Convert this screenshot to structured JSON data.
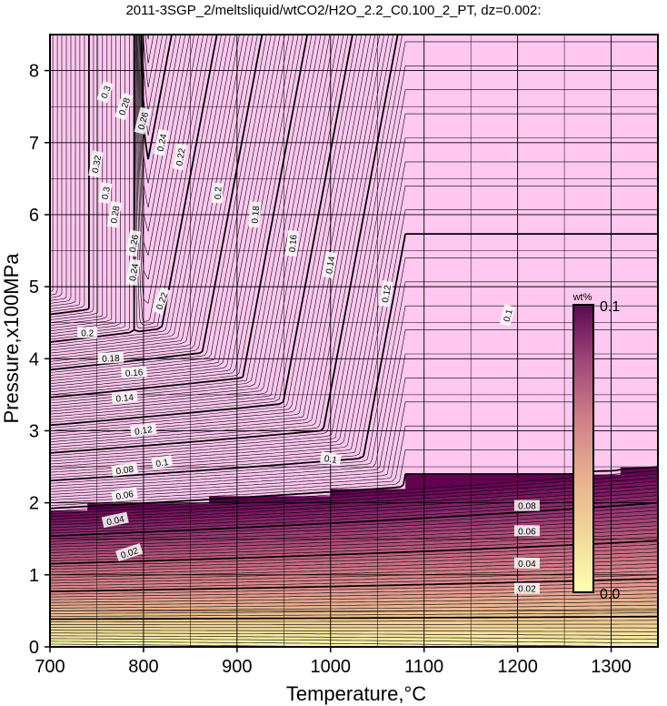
{
  "chart_data": {
    "type": "heatmap",
    "title": "2011-3SGP_2/meltsliquid/wtCO2/H2O_2.2_C0.100_2_PT, dz=0.002:",
    "xlabel": "Temperature,°C",
    "ylabel": "Pressure,x100MPa",
    "xlim": [
      700,
      1350
    ],
    "ylim": [
      0,
      8.5
    ],
    "x_ticks": [
      700,
      800,
      900,
      1000,
      1100,
      1200,
      1300
    ],
    "y_ticks": [
      0,
      1,
      2,
      3,
      4,
      5,
      6,
      7,
      8
    ],
    "grid": true,
    "contour_interval": 0.002,
    "colorbar": {
      "unit": "wt%",
      "min": 0.0,
      "max": 0.1,
      "min_label": "0.0",
      "max_label": "0.1",
      "colors": [
        "#ffffb0",
        "#f0c890",
        "#e09090",
        "#c06080",
        "#903070",
        "#600050"
      ],
      "saturated_color": "#ffc8f0"
    },
    "contour_labels": [
      {
        "text": "0.02",
        "T": 785,
        "P": 1.3,
        "angle": 18
      },
      {
        "text": "0.04",
        "T": 770,
        "P": 1.75,
        "angle": 12
      },
      {
        "text": "0.06",
        "T": 780,
        "P": 2.1,
        "angle": 10
      },
      {
        "text": "0.08",
        "T": 780,
        "P": 2.45,
        "angle": 8
      },
      {
        "text": "0.1",
        "T": 820,
        "P": 2.55,
        "angle": 10
      },
      {
        "text": "0.12",
        "T": 800,
        "P": 3.0,
        "angle": 8
      },
      {
        "text": "0.14",
        "T": 780,
        "P": 3.45,
        "angle": 6
      },
      {
        "text": "0.16",
        "T": 790,
        "P": 3.8,
        "angle": 4
      },
      {
        "text": "0.18",
        "T": 765,
        "P": 4.0,
        "angle": 3
      },
      {
        "text": "0.2",
        "T": 740,
        "P": 4.35,
        "angle": 0
      },
      {
        "text": "0.22",
        "T": 820,
        "P": 4.8,
        "angle": 70
      },
      {
        "text": "0.24",
        "T": 790,
        "P": 5.2,
        "angle": 80
      },
      {
        "text": "0.26",
        "T": 790,
        "P": 5.6,
        "angle": 80
      },
      {
        "text": "0.28",
        "T": 770,
        "P": 6.0,
        "angle": 80
      },
      {
        "text": "0.3",
        "T": 760,
        "P": 6.3,
        "angle": 80
      },
      {
        "text": "0.32",
        "T": 750,
        "P": 6.7,
        "angle": 80
      },
      {
        "text": "0.02",
        "T": 1210,
        "P": 0.8,
        "angle": 0
      },
      {
        "text": "0.04",
        "T": 1210,
        "P": 1.15,
        "angle": 0
      },
      {
        "text": "0.06",
        "T": 1210,
        "P": 1.6,
        "angle": 0
      },
      {
        "text": "0.08",
        "T": 1210,
        "P": 1.95,
        "angle": 0
      },
      {
        "text": "0.1",
        "T": 1000,
        "P": 2.6,
        "angle": -10
      },
      {
        "text": "0.12",
        "T": 1060,
        "P": 4.9,
        "angle": 80
      },
      {
        "text": "0.14",
        "T": 1000,
        "P": 5.3,
        "angle": 80
      },
      {
        "text": "0.16",
        "T": 960,
        "P": 5.6,
        "angle": 85
      },
      {
        "text": "0.18",
        "T": 920,
        "P": 6.0,
        "angle": 85
      },
      {
        "text": "0.2",
        "T": 880,
        "P": 6.3,
        "angle": 88
      },
      {
        "text": "0.22",
        "T": 840,
        "P": 6.8,
        "angle": 80
      },
      {
        "text": "0.24",
        "T": 820,
        "P": 7.0,
        "angle": 78
      },
      {
        "text": "0.26",
        "T": 800,
        "P": 7.3,
        "angle": 75
      },
      {
        "text": "0.28",
        "T": 780,
        "P": 7.5,
        "angle": 72
      },
      {
        "text": "0.3",
        "T": 760,
        "P": 7.7,
        "angle": 70
      },
      {
        "text": "0.1",
        "T": 1190,
        "P": 4.6,
        "angle": 75
      }
    ]
  }
}
